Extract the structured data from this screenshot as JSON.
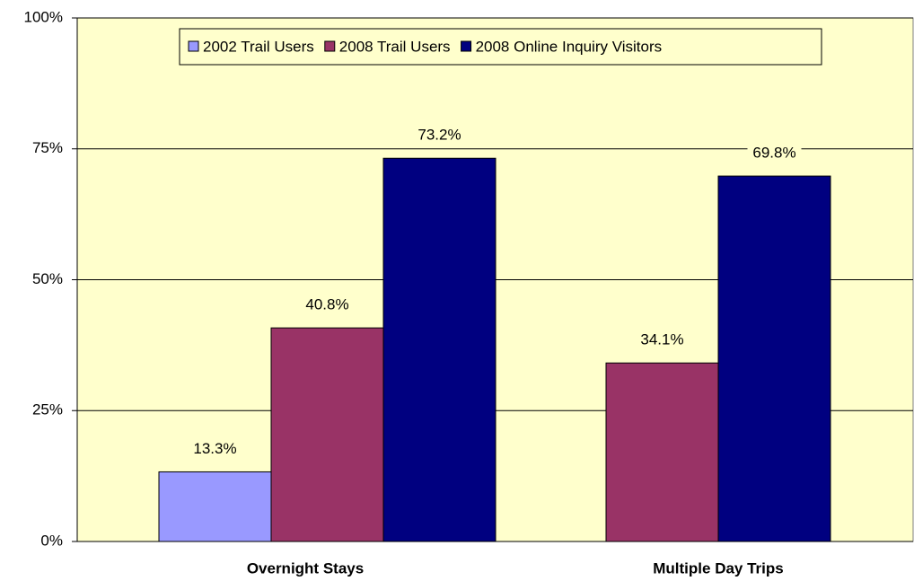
{
  "chart_data": {
    "type": "bar",
    "categories": [
      "Overnight Stays",
      "Multiple Day Trips"
    ],
    "series": [
      {
        "name": "2002 Trail Users",
        "color": "#9999ff",
        "values": [
          13.3,
          null
        ],
        "value_labels": [
          "13.3%",
          null
        ]
      },
      {
        "name": "2008 Trail Users",
        "color": "#993366",
        "values": [
          40.8,
          34.1
        ],
        "value_labels": [
          "40.8%",
          "34.1%"
        ]
      },
      {
        "name": "2008 Online Inquiry Visitors",
        "color": "#000080",
        "values": [
          73.2,
          69.8
        ],
        "value_labels": [
          "73.2%",
          "69.8%"
        ]
      }
    ],
    "ylim": [
      0,
      100
    ],
    "yticks": [
      {
        "value": 0,
        "label": "0%"
      },
      {
        "value": 25,
        "label": "25%"
      },
      {
        "value": 50,
        "label": "50%"
      },
      {
        "value": 75,
        "label": "75%"
      },
      {
        "value": 100,
        "label": "100%"
      }
    ],
    "grid": true,
    "legend": "top",
    "background": "#ffffcc"
  }
}
